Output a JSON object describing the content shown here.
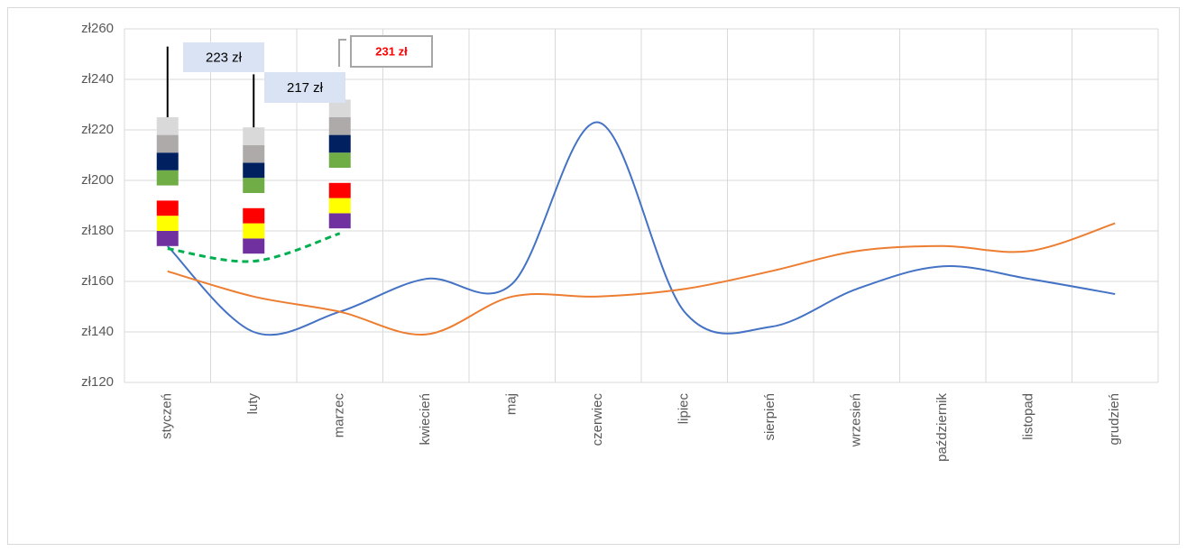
{
  "chart_data": {
    "type": "line",
    "smooth": true,
    "grid": true,
    "categories": [
      "styczeń",
      "luty",
      "marzec",
      "kwiecień",
      "maj",
      "czerwiec",
      "lipiec",
      "sierpień",
      "wrzesień",
      "październik",
      "listopad",
      "grudzień"
    ],
    "ylim": [
      120,
      260
    ],
    "yticks": [
      {
        "value": 120,
        "label": "zł120"
      },
      {
        "value": 140,
        "label": "zł140"
      },
      {
        "value": 160,
        "label": "zł160"
      },
      {
        "value": 180,
        "label": "zł180"
      },
      {
        "value": 200,
        "label": "zł200"
      },
      {
        "value": 220,
        "label": "zł220"
      },
      {
        "value": 240,
        "label": "zł240"
      },
      {
        "value": 260,
        "label": "zł260"
      }
    ],
    "series": [
      {
        "color": "#4472c4",
        "values": [
          174,
          140,
          148,
          161,
          159,
          223,
          148,
          142,
          157,
          166,
          161,
          155
        ]
      },
      {
        "color": "#ed7d31",
        "values": [
          164,
          154,
          148,
          139,
          154,
          154,
          157,
          164,
          172,
          174,
          172,
          183
        ]
      },
      {
        "color": "#00b050",
        "dashed": true,
        "values": [
          173,
          168,
          179,
          null,
          null,
          null,
          null,
          null,
          null,
          null,
          null,
          null
        ]
      }
    ],
    "stacks": [
      {
        "color": "none",
        "values": [
          174,
          171,
          181,
          null,
          null,
          null,
          null,
          null,
          null,
          null,
          null,
          null
        ]
      },
      {
        "color": "#7030a0",
        "values": [
          6,
          6,
          6,
          null,
          null,
          null,
          null,
          null,
          null,
          null,
          null,
          null
        ]
      },
      {
        "color": "#ffff00",
        "values": [
          6,
          6,
          6,
          null,
          null,
          null,
          null,
          null,
          null,
          null,
          null,
          null
        ]
      },
      {
        "color": "#ff0000",
        "values": [
          6,
          6,
          6,
          null,
          null,
          null,
          null,
          null,
          null,
          null,
          null,
          null
        ]
      },
      {
        "color": "none",
        "values": [
          6,
          6,
          6,
          null,
          null,
          null,
          null,
          null,
          null,
          null,
          null,
          null
        ]
      },
      {
        "color": "#70ad47",
        "values": [
          6,
          6,
          6,
          null,
          null,
          null,
          null,
          null,
          null,
          null,
          null,
          null
        ]
      },
      {
        "color": "#002060",
        "values": [
          7,
          6,
          7,
          null,
          null,
          null,
          null,
          null,
          null,
          null,
          null,
          null
        ]
      },
      {
        "color": "#aeaaaa",
        "values": [
          7,
          7,
          7,
          null,
          null,
          null,
          null,
          null,
          null,
          null,
          null,
          null
        ]
      },
      {
        "color": "#d9d9d9",
        "values": [
          7,
          7,
          7,
          null,
          null,
          null,
          null,
          null,
          null,
          null,
          null,
          null
        ]
      }
    ],
    "whiskers": [
      253,
      242,
      null,
      null,
      null,
      null,
      null,
      null,
      null,
      null,
      null,
      null
    ],
    "annotations": [
      {
        "text": "223 zł",
        "color": "#000000",
        "fill": "#dae3f3"
      },
      {
        "text": "217 zł",
        "color": "#000000",
        "fill": "#dae3f3"
      },
      {
        "text": "231 zł",
        "color": "#ff0000",
        "fill": "#ffffff",
        "bold": true
      }
    ]
  }
}
